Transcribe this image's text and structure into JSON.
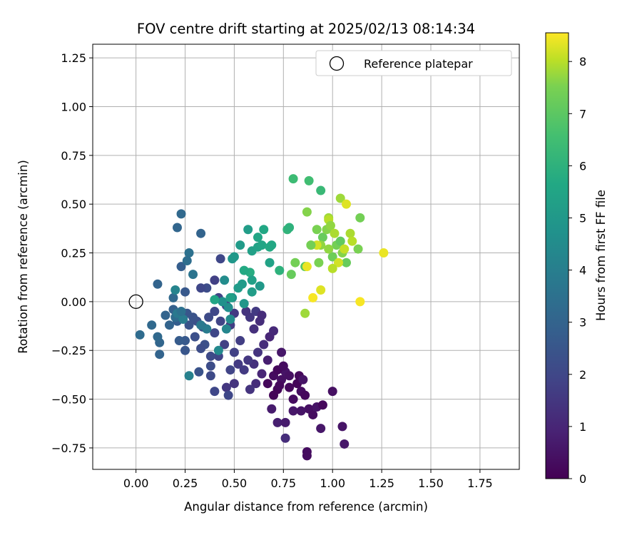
{
  "chart_data": {
    "type": "scatter",
    "title": "FOV centre drift starting at 2025/02/13 08:14:34",
    "xlabel": "Angular distance from reference (arcmin)",
    "ylabel": "Rotation from reference (arcmin)",
    "xlim": [
      -0.22,
      1.95
    ],
    "ylim": [
      -0.86,
      1.32
    ],
    "xticks": [
      0.0,
      0.25,
      0.5,
      0.75,
      1.0,
      1.25,
      1.5,
      1.75
    ],
    "xtick_labels": [
      "0.00",
      "0.25",
      "0.50",
      "0.75",
      "1.00",
      "1.25",
      "1.50",
      "1.75"
    ],
    "yticks": [
      -0.75,
      -0.5,
      -0.25,
      0.0,
      0.25,
      0.5,
      0.75,
      1.0,
      1.25
    ],
    "ytick_labels": [
      "−0.75",
      "−0.50",
      "−0.25",
      "0.00",
      "0.25",
      "0.50",
      "0.75",
      "1.00",
      "1.25"
    ],
    "grid": true,
    "legend": {
      "placement": "top-right",
      "entries": [
        "Reference platepar"
      ]
    },
    "reference_point": {
      "x": 0.0,
      "y": 0.0
    },
    "colorbar": {
      "label": "Hours from first FF file",
      "colormap": "viridis",
      "range": [
        0,
        8.55
      ],
      "ticks": [
        0,
        1,
        2,
        3,
        4,
        5,
        6,
        7,
        8
      ],
      "tick_labels": [
        "0",
        "1",
        "2",
        "3",
        "4",
        "5",
        "6",
        "7",
        "8"
      ]
    },
    "points": [
      {
        "x": 0.67,
        "y": -0.42,
        "h": 0.2
      },
      {
        "x": 0.7,
        "y": -0.38,
        "h": 0.3
      },
      {
        "x": 0.72,
        "y": -0.45,
        "h": 0.1
      },
      {
        "x": 0.74,
        "y": -0.4,
        "h": 0.4
      },
      {
        "x": 0.76,
        "y": -0.36,
        "h": 0.5
      },
      {
        "x": 0.78,
        "y": -0.44,
        "h": 0.2
      },
      {
        "x": 0.8,
        "y": -0.5,
        "h": 0.3
      },
      {
        "x": 0.82,
        "y": -0.42,
        "h": 0.1
      },
      {
        "x": 0.84,
        "y": -0.46,
        "h": 0.3
      },
      {
        "x": 0.86,
        "y": -0.48,
        "h": 0.2
      },
      {
        "x": 0.88,
        "y": -0.55,
        "h": 0.4
      },
      {
        "x": 0.9,
        "y": -0.58,
        "h": 0.3
      },
      {
        "x": 0.92,
        "y": -0.54,
        "h": 0.5
      },
      {
        "x": 0.95,
        "y": -0.53,
        "h": 0.2
      },
      {
        "x": 0.87,
        "y": -0.77,
        "h": 0.3
      },
      {
        "x": 0.87,
        "y": -0.79,
        "h": 0.3
      },
      {
        "x": 1.0,
        "y": -0.46,
        "h": 0.4
      },
      {
        "x": 1.05,
        "y": -0.64,
        "h": 0.5
      },
      {
        "x": 1.06,
        "y": -0.73,
        "h": 0.6
      },
      {
        "x": 0.94,
        "y": -0.65,
        "h": 0.6
      },
      {
        "x": 0.76,
        "y": -0.7,
        "h": 1.2
      },
      {
        "x": 0.7,
        "y": -0.48,
        "h": 0.1
      },
      {
        "x": 0.72,
        "y": -0.35,
        "h": 0.2
      },
      {
        "x": 0.75,
        "y": -0.33,
        "h": 0.3
      },
      {
        "x": 0.78,
        "y": -0.38,
        "h": 0.4
      },
      {
        "x": 0.83,
        "y": -0.38,
        "h": 0.2
      },
      {
        "x": 0.85,
        "y": -0.4,
        "h": 0.5
      },
      {
        "x": 0.74,
        "y": -0.26,
        "h": 0.6
      },
      {
        "x": 0.69,
        "y": -0.55,
        "h": 0.7
      },
      {
        "x": 0.72,
        "y": -0.62,
        "h": 0.8
      },
      {
        "x": 0.76,
        "y": -0.62,
        "h": 0.7
      },
      {
        "x": 0.8,
        "y": -0.56,
        "h": 0.6
      },
      {
        "x": 0.84,
        "y": -0.56,
        "h": 0.5
      },
      {
        "x": 0.73,
        "y": -0.43,
        "h": 0.2
      },
      {
        "x": 0.67,
        "y": -0.3,
        "h": 0.8
      },
      {
        "x": 0.64,
        "y": -0.37,
        "h": 1.0
      },
      {
        "x": 0.61,
        "y": -0.42,
        "h": 1.2
      },
      {
        "x": 0.58,
        "y": -0.45,
        "h": 1.4
      },
      {
        "x": 0.6,
        "y": -0.32,
        "h": 1.3
      },
      {
        "x": 0.57,
        "y": -0.3,
        "h": 1.5
      },
      {
        "x": 0.55,
        "y": -0.35,
        "h": 1.6
      },
      {
        "x": 0.62,
        "y": -0.26,
        "h": 1.4
      },
      {
        "x": 0.65,
        "y": -0.22,
        "h": 1.2
      },
      {
        "x": 0.68,
        "y": -0.18,
        "h": 1.0
      },
      {
        "x": 0.7,
        "y": -0.15,
        "h": 1.1
      },
      {
        "x": 0.63,
        "y": -0.1,
        "h": 1.2
      },
      {
        "x": 0.6,
        "y": -0.14,
        "h": 1.3
      },
      {
        "x": 0.58,
        "y": -0.08,
        "h": 1.5
      },
      {
        "x": 0.56,
        "y": -0.05,
        "h": 1.4
      },
      {
        "x": 0.61,
        "y": -0.05,
        "h": 1.6
      },
      {
        "x": 0.64,
        "y": -0.07,
        "h": 1.2
      },
      {
        "x": 0.53,
        "y": -0.2,
        "h": 1.7
      },
      {
        "x": 0.5,
        "y": -0.26,
        "h": 1.8
      },
      {
        "x": 0.52,
        "y": -0.32,
        "h": 1.6
      },
      {
        "x": 0.48,
        "y": -0.35,
        "h": 1.9
      },
      {
        "x": 0.46,
        "y": -0.44,
        "h": 1.5
      },
      {
        "x": 0.5,
        "y": -0.42,
        "h": 1.4
      },
      {
        "x": 0.47,
        "y": -0.48,
        "h": 2.0
      },
      {
        "x": 0.4,
        "y": -0.46,
        "h": 2.0
      },
      {
        "x": 0.38,
        "y": -0.38,
        "h": 2.1
      },
      {
        "x": 0.38,
        "y": -0.33,
        "h": 2.2
      },
      {
        "x": 0.42,
        "y": -0.28,
        "h": 1.9
      },
      {
        "x": 0.45,
        "y": -0.22,
        "h": 1.8
      },
      {
        "x": 0.38,
        "y": -0.28,
        "h": 2.1
      },
      {
        "x": 0.35,
        "y": -0.22,
        "h": 2.3
      },
      {
        "x": 0.4,
        "y": -0.16,
        "h": 2.0
      },
      {
        "x": 0.43,
        "y": -0.1,
        "h": 1.9
      },
      {
        "x": 0.48,
        "y": -0.12,
        "h": 1.7
      },
      {
        "x": 0.5,
        "y": -0.06,
        "h": 1.6
      },
      {
        "x": 0.46,
        "y": -0.02,
        "h": 1.8
      },
      {
        "x": 0.42,
        "y": 0.02,
        "h": 1.9
      },
      {
        "x": 0.4,
        "y": -0.05,
        "h": 2.0
      },
      {
        "x": 0.37,
        "y": -0.08,
        "h": 2.1
      },
      {
        "x": 0.34,
        "y": -0.13,
        "h": 2.2
      },
      {
        "x": 0.31,
        "y": -0.1,
        "h": 2.3
      },
      {
        "x": 0.29,
        "y": -0.08,
        "h": 2.4
      },
      {
        "x": 0.26,
        "y": -0.06,
        "h": 2.5
      },
      {
        "x": 0.27,
        "y": -0.12,
        "h": 2.4
      },
      {
        "x": 0.3,
        "y": -0.18,
        "h": 2.3
      },
      {
        "x": 0.33,
        "y": -0.24,
        "h": 2.2
      },
      {
        "x": 0.32,
        "y": -0.36,
        "h": 2.4
      },
      {
        "x": 0.25,
        "y": -0.2,
        "h": 2.6
      },
      {
        "x": 0.25,
        "y": -0.25,
        "h": 2.5
      },
      {
        "x": 0.22,
        "y": -0.2,
        "h": 2.7
      },
      {
        "x": 0.21,
        "y": -0.1,
        "h": 2.8
      },
      {
        "x": 0.19,
        "y": -0.04,
        "h": 2.9
      },
      {
        "x": 0.17,
        "y": -0.12,
        "h": 3.0
      },
      {
        "x": 0.15,
        "y": -0.07,
        "h": 3.0
      },
      {
        "x": 0.12,
        "y": -0.21,
        "h": 3.1
      },
      {
        "x": 0.11,
        "y": -0.18,
        "h": 3.2
      },
      {
        "x": 0.08,
        "y": -0.12,
        "h": 3.2
      },
      {
        "x": 0.02,
        "y": -0.17,
        "h": 3.3
      },
      {
        "x": 0.12,
        "y": -0.27,
        "h": 3.0
      },
      {
        "x": 0.11,
        "y": 0.09,
        "h": 3.0
      },
      {
        "x": 0.19,
        "y": 0.02,
        "h": 3.2
      },
      {
        "x": 0.2,
        "y": -0.08,
        "h": 3.3
      },
      {
        "x": 0.23,
        "y": 0.18,
        "h": 2.8
      },
      {
        "x": 0.25,
        "y": 0.05,
        "h": 2.6
      },
      {
        "x": 0.27,
        "y": 0.25,
        "h": 3.5
      },
      {
        "x": 0.26,
        "y": 0.21,
        "h": 3.4
      },
      {
        "x": 0.21,
        "y": 0.38,
        "h": 3.1
      },
      {
        "x": 0.23,
        "y": 0.45,
        "h": 3.2
      },
      {
        "x": 0.33,
        "y": 0.35,
        "h": 3.0
      },
      {
        "x": 0.29,
        "y": 0.14,
        "h": 3.6
      },
      {
        "x": 0.36,
        "y": 0.07,
        "h": 2.2
      },
      {
        "x": 0.4,
        "y": 0.11,
        "h": 1.8
      },
      {
        "x": 0.43,
        "y": 0.22,
        "h": 2.0
      },
      {
        "x": 0.33,
        "y": 0.07,
        "h": 2.0
      },
      {
        "x": 0.21,
        "y": -0.06,
        "h": 3.8
      },
      {
        "x": 0.27,
        "y": -0.38,
        "h": 4.1
      },
      {
        "x": 0.24,
        "y": -0.09,
        "h": 3.9
      },
      {
        "x": 0.2,
        "y": 0.06,
        "h": 4.2
      },
      {
        "x": 0.23,
        "y": -0.05,
        "h": 3.5
      },
      {
        "x": 0.36,
        "y": -0.14,
        "h": 3.9
      },
      {
        "x": 0.33,
        "y": -0.12,
        "h": 3.8
      },
      {
        "x": 0.42,
        "y": -0.25,
        "h": 4.4
      },
      {
        "x": 0.46,
        "y": -0.14,
        "h": 4.3
      },
      {
        "x": 0.48,
        "y": -0.09,
        "h": 4.5
      },
      {
        "x": 0.47,
        "y": -0.03,
        "h": 4.6
      },
      {
        "x": 0.44,
        "y": 0.0,
        "h": 4.7
      },
      {
        "x": 0.49,
        "y": 0.02,
        "h": 4.8
      },
      {
        "x": 0.55,
        "y": -0.01,
        "h": 4.9
      },
      {
        "x": 0.45,
        "y": 0.11,
        "h": 4.5
      },
      {
        "x": 0.49,
        "y": 0.22,
        "h": 4.9
      },
      {
        "x": 0.5,
        "y": 0.23,
        "h": 5.0
      },
      {
        "x": 0.53,
        "y": 0.29,
        "h": 5.1
      },
      {
        "x": 0.57,
        "y": 0.37,
        "h": 5.2
      },
      {
        "x": 0.59,
        "y": 0.26,
        "h": 5.3
      },
      {
        "x": 0.62,
        "y": 0.28,
        "h": 5.4
      },
      {
        "x": 0.62,
        "y": 0.33,
        "h": 5.5
      },
      {
        "x": 0.65,
        "y": 0.37,
        "h": 5.6
      },
      {
        "x": 0.64,
        "y": 0.29,
        "h": 5.5
      },
      {
        "x": 0.68,
        "y": 0.28,
        "h": 5.7
      },
      {
        "x": 0.69,
        "y": 0.29,
        "h": 5.6
      },
      {
        "x": 0.68,
        "y": 0.2,
        "h": 5.4
      },
      {
        "x": 0.58,
        "y": 0.15,
        "h": 5.8
      },
      {
        "x": 0.55,
        "y": 0.16,
        "h": 5.7
      },
      {
        "x": 0.59,
        "y": 0.11,
        "h": 5.3
      },
      {
        "x": 0.59,
        "y": 0.05,
        "h": 5.2
      },
      {
        "x": 0.63,
        "y": 0.08,
        "h": 5.0
      },
      {
        "x": 0.54,
        "y": 0.09,
        "h": 5.1
      },
      {
        "x": 0.52,
        "y": 0.07,
        "h": 5.1
      },
      {
        "x": 0.4,
        "y": 0.01,
        "h": 5.5
      },
      {
        "x": 0.48,
        "y": 0.02,
        "h": 5.3
      },
      {
        "x": 0.73,
        "y": 0.16,
        "h": 6.0
      },
      {
        "x": 0.77,
        "y": 0.37,
        "h": 6.1
      },
      {
        "x": 0.78,
        "y": 0.38,
        "h": 6.0
      },
      {
        "x": 0.8,
        "y": 0.63,
        "h": 6.4
      },
      {
        "x": 0.88,
        "y": 0.62,
        "h": 6.5
      },
      {
        "x": 0.94,
        "y": 0.57,
        "h": 6.3
      },
      {
        "x": 0.86,
        "y": 0.18,
        "h": 6.9
      },
      {
        "x": 0.79,
        "y": 0.14,
        "h": 7.2
      },
      {
        "x": 0.81,
        "y": 0.2,
        "h": 7.4
      },
      {
        "x": 0.87,
        "y": 0.46,
        "h": 7.6
      },
      {
        "x": 0.92,
        "y": 0.37,
        "h": 7.5
      },
      {
        "x": 0.95,
        "y": 0.33,
        "h": 7.2
      },
      {
        "x": 0.97,
        "y": 0.37,
        "h": 7.6
      },
      {
        "x": 0.98,
        "y": 0.43,
        "h": 7.8
      },
      {
        "x": 0.98,
        "y": 0.42,
        "h": 8.0
      },
      {
        "x": 0.99,
        "y": 0.39,
        "h": 7.7
      },
      {
        "x": 1.01,
        "y": 0.35,
        "h": 7.9
      },
      {
        "x": 1.02,
        "y": 0.29,
        "h": 7.4
      },
      {
        "x": 1.0,
        "y": 0.23,
        "h": 7.3
      },
      {
        "x": 0.98,
        "y": 0.27,
        "h": 7.7
      },
      {
        "x": 1.04,
        "y": 0.31,
        "h": 7.1
      },
      {
        "x": 1.04,
        "y": 0.53,
        "h": 7.8
      },
      {
        "x": 1.07,
        "y": 0.5,
        "h": 8.3
      },
      {
        "x": 1.09,
        "y": 0.35,
        "h": 7.9
      },
      {
        "x": 1.1,
        "y": 0.31,
        "h": 8.0
      },
      {
        "x": 1.13,
        "y": 0.27,
        "h": 7.5
      },
      {
        "x": 1.14,
        "y": 0.43,
        "h": 7.4
      },
      {
        "x": 1.07,
        "y": 0.2,
        "h": 7.2
      },
      {
        "x": 1.05,
        "y": 0.25,
        "h": 7.6
      },
      {
        "x": 1.06,
        "y": 0.27,
        "h": 8.1
      },
      {
        "x": 1.03,
        "y": 0.2,
        "h": 8.2
      },
      {
        "x": 1.0,
        "y": 0.17,
        "h": 8.0
      },
      {
        "x": 0.94,
        "y": 0.29,
        "h": 7.7
      },
      {
        "x": 0.93,
        "y": 0.2,
        "h": 7.5
      },
      {
        "x": 0.92,
        "y": 0.29,
        "h": 8.2
      },
      {
        "x": 0.89,
        "y": 0.29,
        "h": 7.9
      },
      {
        "x": 0.87,
        "y": 0.18,
        "h": 8.4
      },
      {
        "x": 0.9,
        "y": 0.02,
        "h": 8.5
      },
      {
        "x": 0.94,
        "y": 0.06,
        "h": 8.3
      },
      {
        "x": 0.86,
        "y": -0.06,
        "h": 7.8
      },
      {
        "x": 1.14,
        "y": 0.0,
        "h": 8.5
      },
      {
        "x": 1.26,
        "y": 0.25,
        "h": 8.4
      },
      {
        "x": 0.89,
        "y": 0.29,
        "h": 7.4
      }
    ]
  }
}
